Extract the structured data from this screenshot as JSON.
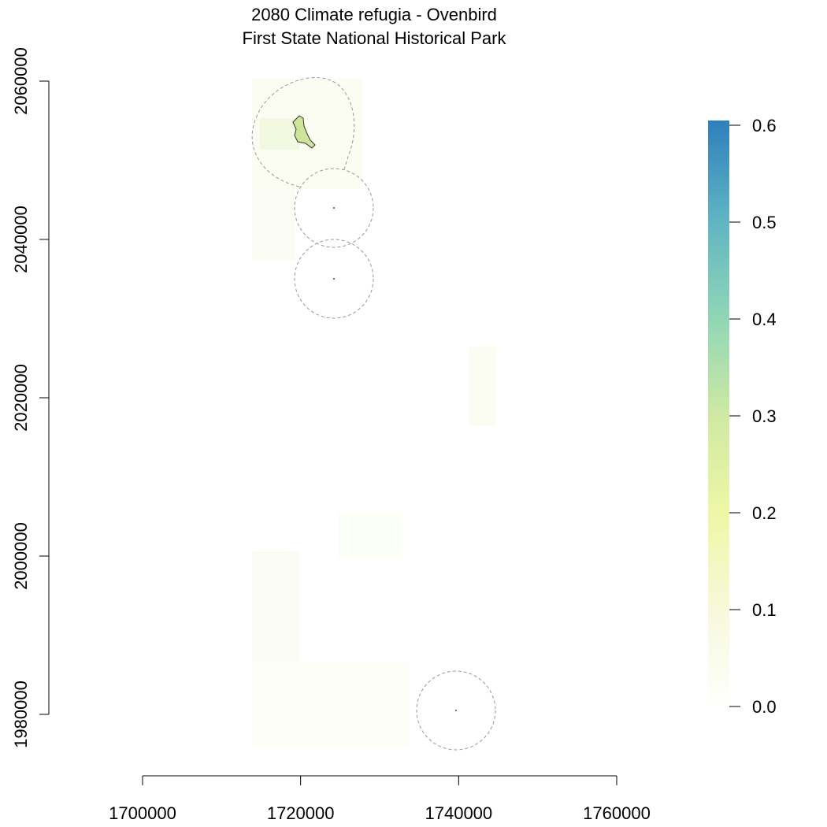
{
  "chart_data": {
    "type": "raster",
    "title": "2080 Climate refugia - Ovenbird",
    "subtitle": "First State National Historical Park",
    "xlim": [
      1700000,
      1760000
    ],
    "xticks": [
      1700000,
      1720000,
      1740000,
      1760000
    ],
    "ylim": [
      1980000,
      2060000
    ],
    "yticks": [
      1980000,
      2000000,
      2020000,
      2040000,
      2060000
    ],
    "zlim": [
      0,
      0.6
    ],
    "zticks": [
      {
        "value": 0,
        "label": "0.0"
      },
      0.1,
      0.2,
      0.3,
      0.4,
      0.5,
      0.6
    ],
    "colors": [
      "#ffffff",
      "#f6f9dc",
      "#eef7a6",
      "#cfe9a3",
      "#8fd6b6",
      "#5fb4c3",
      "#2e7fbd"
    ]
  }
}
